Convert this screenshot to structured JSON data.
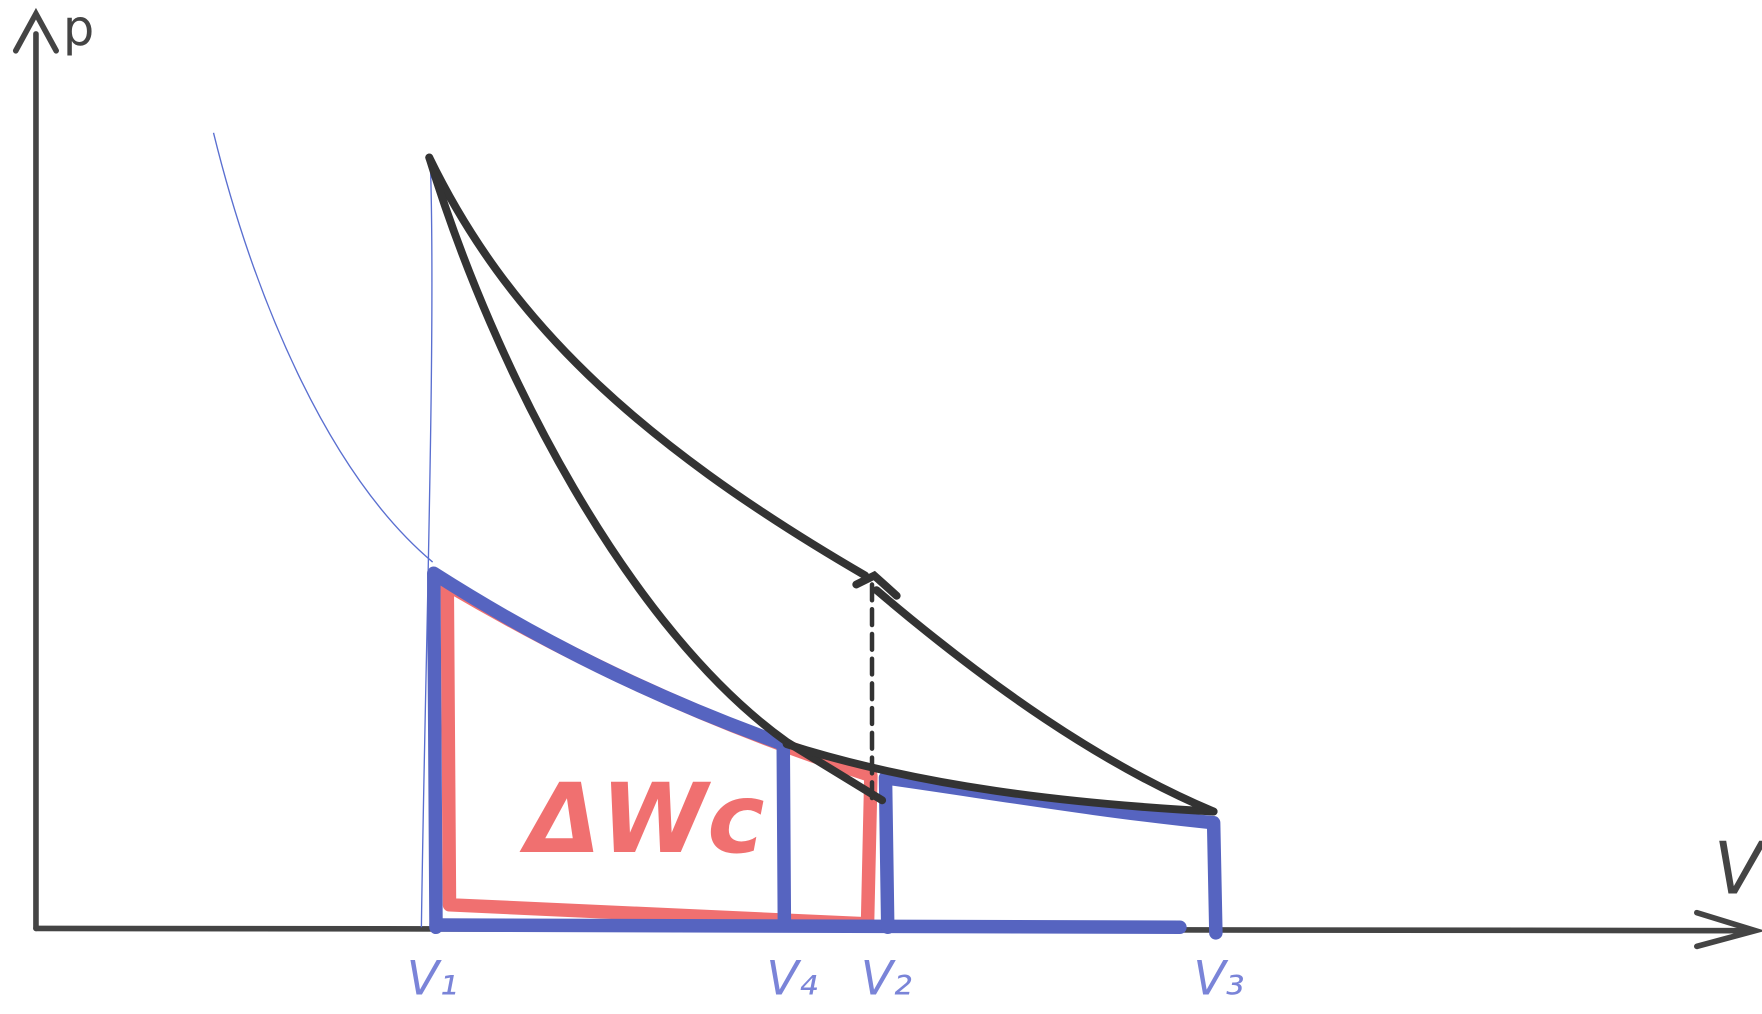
{
  "axes": {
    "y_label": "p",
    "x_label": "V"
  },
  "volume_labels": [
    "V₁",
    "V₄",
    "V₂",
    "V₃"
  ],
  "area_label": "ΔWc"
}
